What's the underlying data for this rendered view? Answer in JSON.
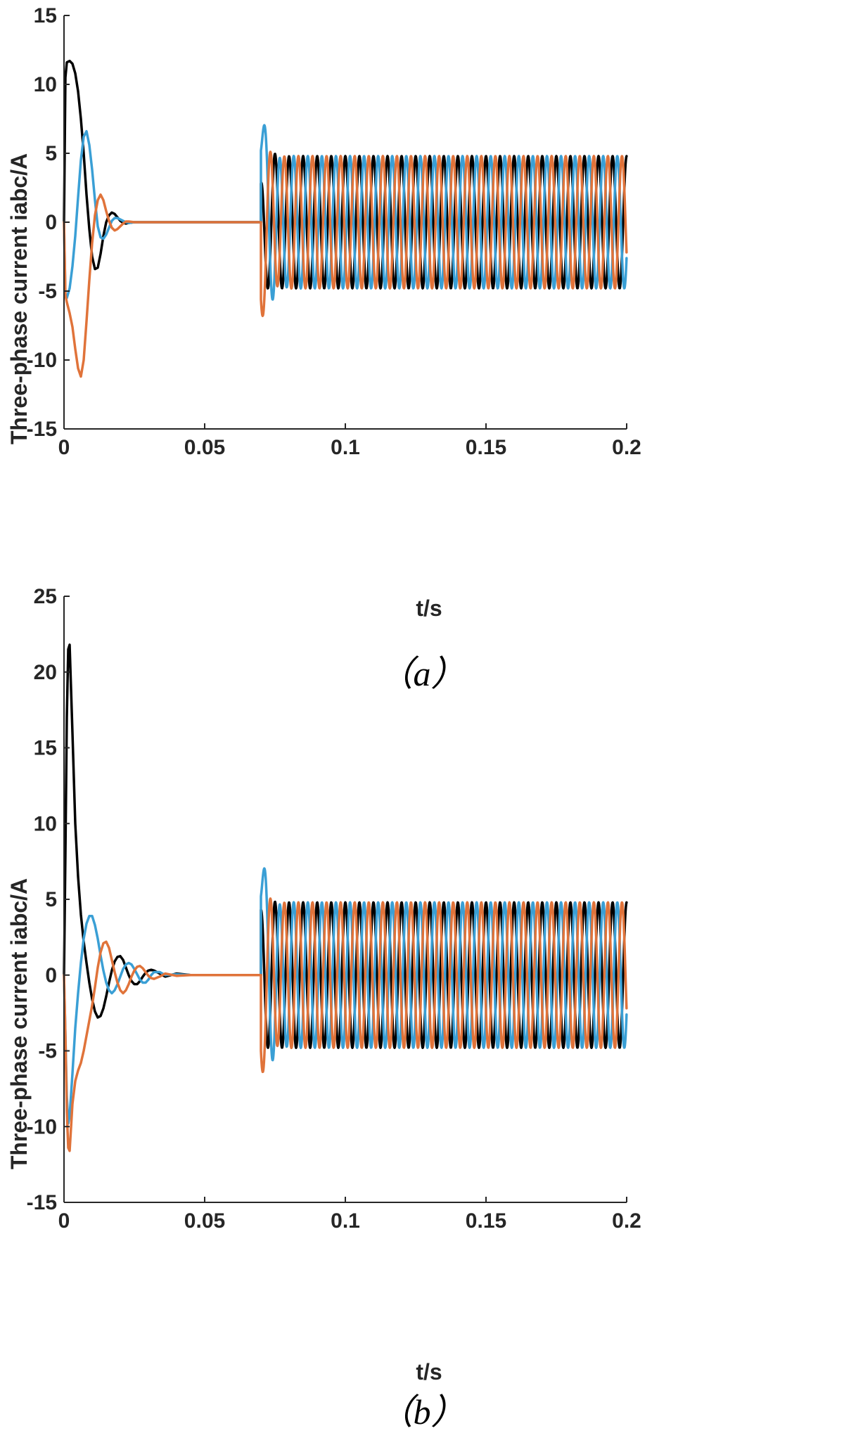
{
  "chart_data": [
    {
      "type": "line",
      "caption": "（a）",
      "xlabel": "t/s",
      "ylabel": "Three-phase current iabc/A",
      "xlim": [
        0,
        0.2
      ],
      "ylim": [
        -15,
        15
      ],
      "xticks": [
        0,
        0.05,
        0.1,
        0.15,
        0.2
      ],
      "xtick_labels": [
        "0",
        "0.05",
        "0.1",
        "0.15",
        "0.2"
      ],
      "yticks": [
        -15,
        -10,
        -5,
        0,
        5,
        10,
        15
      ],
      "ytick_labels": [
        "-15",
        "-10",
        "-5",
        "0",
        "5",
        "10",
        "15"
      ],
      "grid": false,
      "series": [
        {
          "color": "#000000",
          "x": [
            0,
            0.0005,
            0.001,
            0.002,
            0.003,
            0.004,
            0.005,
            0.006,
            0.007,
            0.008,
            0.009,
            0.01,
            0.011,
            0.012,
            0.013,
            0.014,
            0.015,
            0.016,
            0.017,
            0.018,
            0.019,
            0.02,
            0.021,
            0.022,
            0.023,
            0.025,
            0.03,
            0.07
          ],
          "y": [
            0,
            10.5,
            11.6,
            11.7,
            11.5,
            10.8,
            9.5,
            7.5,
            5,
            2,
            -0.5,
            -2.5,
            -3.4,
            -3.3,
            -2.3,
            -1.0,
            0.0,
            0.5,
            0.7,
            0.6,
            0.35,
            0.1,
            -0.05,
            -0.1,
            -0.05,
            0,
            0,
            0
          ]
        },
        {
          "color": "#3a9fd5",
          "x": [
            0,
            0.0005,
            0.001,
            0.002,
            0.003,
            0.004,
            0.005,
            0.006,
            0.007,
            0.008,
            0.009,
            0.01,
            0.011,
            0.012,
            0.013,
            0.014,
            0.015,
            0.016,
            0.017,
            0.018,
            0.019,
            0.02,
            0.021,
            0.022,
            0.023,
            0.025,
            0.03,
            0.07
          ],
          "y": [
            0,
            -5.4,
            -5.5,
            -4.8,
            -3.2,
            -1.0,
            1.8,
            4.5,
            6.2,
            6.6,
            5.6,
            3.8,
            1.6,
            -0.3,
            -1.1,
            -1.2,
            -0.9,
            -0.4,
            0.1,
            0.3,
            0.3,
            0.2,
            0.1,
            0,
            -0.05,
            0,
            0,
            0
          ]
        },
        {
          "color": "#e0733a",
          "x": [
            0,
            0.0005,
            0.001,
            0.002,
            0.003,
            0.004,
            0.005,
            0.006,
            0.007,
            0.008,
            0.009,
            0.01,
            0.011,
            0.012,
            0.013,
            0.014,
            0.015,
            0.016,
            0.017,
            0.018,
            0.019,
            0.02,
            0.021,
            0.022,
            0.023,
            0.025,
            0.03,
            0.07
          ],
          "y": [
            0,
            -5.3,
            -5.8,
            -6.6,
            -7.6,
            -9.2,
            -10.6,
            -11.2,
            -10.0,
            -7.2,
            -4.2,
            -1.5,
            0.5,
            1.6,
            2.0,
            1.6,
            0.8,
            0.1,
            -0.4,
            -0.6,
            -0.5,
            -0.3,
            -0.1,
            0.05,
            0.05,
            0,
            0,
            0
          ]
        }
      ],
      "steady_state": {
        "start_time": 0.07,
        "end_time": 0.2,
        "amplitude": 4.8,
        "frequency_hz": 200,
        "initial_peaks": [
          2.8,
          5.2,
          -5.6
        ]
      }
    },
    {
      "type": "line",
      "caption": "（b）",
      "xlabel": "t/s",
      "ylabel": "Three-phase current iabc/A",
      "xlim": [
        0,
        0.2
      ],
      "ylim": [
        -15,
        25
      ],
      "xticks": [
        0,
        0.05,
        0.1,
        0.15,
        0.2
      ],
      "xtick_labels": [
        "0",
        "0.05",
        "0.1",
        "0.15",
        "0.2"
      ],
      "yticks": [
        -15,
        -10,
        -5,
        0,
        5,
        10,
        15,
        20,
        25
      ],
      "ytick_labels": [
        "-15",
        "-10",
        "-5",
        "0",
        "5",
        "10",
        "15",
        "20",
        "25"
      ],
      "grid": false,
      "series": [
        {
          "color": "#000000",
          "x": [
            0,
            0.0005,
            0.001,
            0.0015,
            0.002,
            0.003,
            0.004,
            0.005,
            0.006,
            0.007,
            0.008,
            0.009,
            0.01,
            0.011,
            0.012,
            0.013,
            0.014,
            0.015,
            0.016,
            0.017,
            0.018,
            0.019,
            0.02,
            0.021,
            0.022,
            0.023,
            0.024,
            0.025,
            0.026,
            0.027,
            0.028,
            0.029,
            0.03,
            0.031,
            0.032,
            0.034,
            0.036,
            0.04,
            0.045,
            0.05,
            0.07
          ],
          "y": [
            0,
            8,
            17,
            21.5,
            21.8,
            16,
            10,
            6.5,
            4,
            2.2,
            0.8,
            -0.5,
            -1.6,
            -2.4,
            -2.8,
            -2.7,
            -2.2,
            -1.4,
            -0.5,
            0.3,
            0.9,
            1.2,
            1.25,
            1.0,
            0.5,
            0,
            -0.4,
            -0.6,
            -0.6,
            -0.4,
            -0.1,
            0.15,
            0.3,
            0.35,
            0.3,
            0.1,
            -0.1,
            0.1,
            0,
            0,
            0
          ]
        },
        {
          "color": "#3a9fd5",
          "x": [
            0,
            0.0005,
            0.001,
            0.0015,
            0.002,
            0.003,
            0.004,
            0.005,
            0.006,
            0.007,
            0.008,
            0.009,
            0.01,
            0.011,
            0.012,
            0.013,
            0.014,
            0.015,
            0.016,
            0.017,
            0.018,
            0.019,
            0.02,
            0.021,
            0.022,
            0.023,
            0.024,
            0.025,
            0.026,
            0.027,
            0.028,
            0.029,
            0.03,
            0.031,
            0.032,
            0.034,
            0.036,
            0.04,
            0.045,
            0.05,
            0.07
          ],
          "y": [
            0,
            -4,
            -8,
            -9.8,
            -9.3,
            -6.5,
            -3.5,
            -1.2,
            0.8,
            2.4,
            3.4,
            3.9,
            3.9,
            3.3,
            2.4,
            1.3,
            0.3,
            -0.5,
            -1.0,
            -1.2,
            -1.0,
            -0.6,
            -0.1,
            0.4,
            0.7,
            0.8,
            0.7,
            0.4,
            0.05,
            -0.3,
            -0.5,
            -0.5,
            -0.3,
            0,
            0.2,
            0.2,
            0,
            0.05,
            0,
            0,
            0
          ]
        },
        {
          "color": "#e0733a",
          "x": [
            0,
            0.0005,
            0.001,
            0.0015,
            0.002,
            0.003,
            0.004,
            0.005,
            0.006,
            0.007,
            0.008,
            0.009,
            0.01,
            0.011,
            0.012,
            0.013,
            0.014,
            0.015,
            0.016,
            0.017,
            0.018,
            0.019,
            0.02,
            0.021,
            0.022,
            0.023,
            0.024,
            0.025,
            0.026,
            0.027,
            0.028,
            0.029,
            0.03,
            0.031,
            0.032,
            0.034,
            0.036,
            0.04,
            0.045,
            0.05,
            0.07
          ],
          "y": [
            0,
            -4,
            -9,
            -11.4,
            -11.6,
            -8.5,
            -7.0,
            -6.3,
            -5.8,
            -5.0,
            -4.0,
            -3.0,
            -2.0,
            -0.8,
            0.5,
            1.5,
            2.1,
            2.2,
            1.8,
            1.0,
            0.2,
            -0.5,
            -1.0,
            -1.2,
            -1.0,
            -0.6,
            -0.1,
            0.3,
            0.55,
            0.6,
            0.45,
            0.2,
            -0.05,
            -0.2,
            -0.25,
            -0.1,
            0.1,
            -0.05,
            0,
            0,
            0
          ]
        }
      ],
      "steady_state": {
        "start_time": 0.07,
        "end_time": 0.2,
        "amplitude": 4.8,
        "frequency_hz": 200,
        "initial_peaks": [
          4.3,
          5.2,
          -5.0
        ]
      }
    }
  ]
}
